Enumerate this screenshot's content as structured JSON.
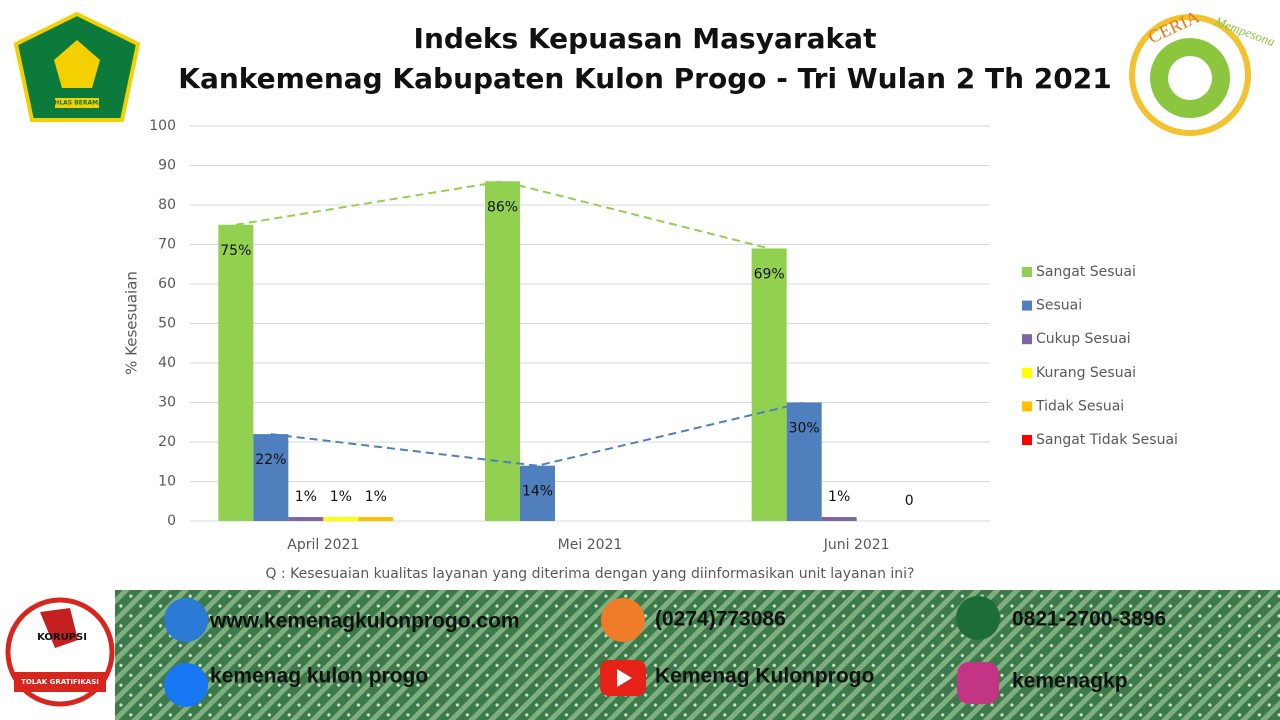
{
  "chart_data": {
    "type": "bar",
    "title": [
      "Indeks Kepuasan Masyarakat",
      "Kankemenag Kabupaten Kulon Progo - Tri Wulan 2 Th 2021"
    ],
    "ylabel": "% Kesesuaian",
    "xlabel": "Q : Kesesuaian kualitas layanan yang diterima dengan yang diinformasikan unit layanan ini?",
    "categories": [
      "April 2021",
      "Mei 2021",
      "Juni 2021"
    ],
    "series": [
      {
        "name": "Sangat Sesuai",
        "color": "#92d050",
        "values": [
          75,
          86,
          69
        ],
        "value_labels": [
          "75%",
          "86%",
          "69%"
        ]
      },
      {
        "name": "Sesuai",
        "color": "#4f7fbd",
        "values": [
          22,
          14,
          30
        ],
        "value_labels": [
          "22%",
          "14%",
          "30%"
        ]
      },
      {
        "name": "Cukup Sesuai",
        "color": "#8064a2",
        "values": [
          1,
          null,
          1
        ],
        "value_labels": [
          "1%",
          null,
          "1%"
        ]
      },
      {
        "name": "Kurang Sesuai",
        "color": "#ffff00",
        "values": [
          1,
          null,
          null
        ],
        "value_labels": [
          "1%",
          null,
          null
        ]
      },
      {
        "name": "Tidak Sesuai",
        "color": "#ffc000",
        "values": [
          1,
          null,
          0
        ],
        "value_labels": [
          "1%",
          null,
          "0"
        ]
      },
      {
        "name": "Sangat Tidak Sesuai",
        "color": "#ff0000",
        "values": [
          null,
          null,
          null
        ],
        "value_labels": [
          null,
          null,
          null
        ]
      }
    ],
    "trend_lines": [
      0,
      1
    ],
    "ylim": [
      0,
      100
    ],
    "yticks": [
      0,
      10,
      20,
      30,
      40,
      50,
      60,
      70,
      80,
      90,
      100
    ],
    "grid": true,
    "legend": "right"
  },
  "footer": {
    "website": "www.kemenagkulonprogo.com",
    "phone": "(0274)773086",
    "whatsapp": "0821-2700-3896",
    "facebook": "kemenag kulon progo",
    "youtube": "Kemenag Kulonprogo",
    "instagram": "kemenagkp"
  },
  "logos": {
    "kemenag": "IKHLAS BERAMAL",
    "ceria": "CERIA",
    "ceria_sub": "Mempesona",
    "anti": "KORUPSI",
    "anti_sub": "TOLAK GRATIFIKASI"
  }
}
